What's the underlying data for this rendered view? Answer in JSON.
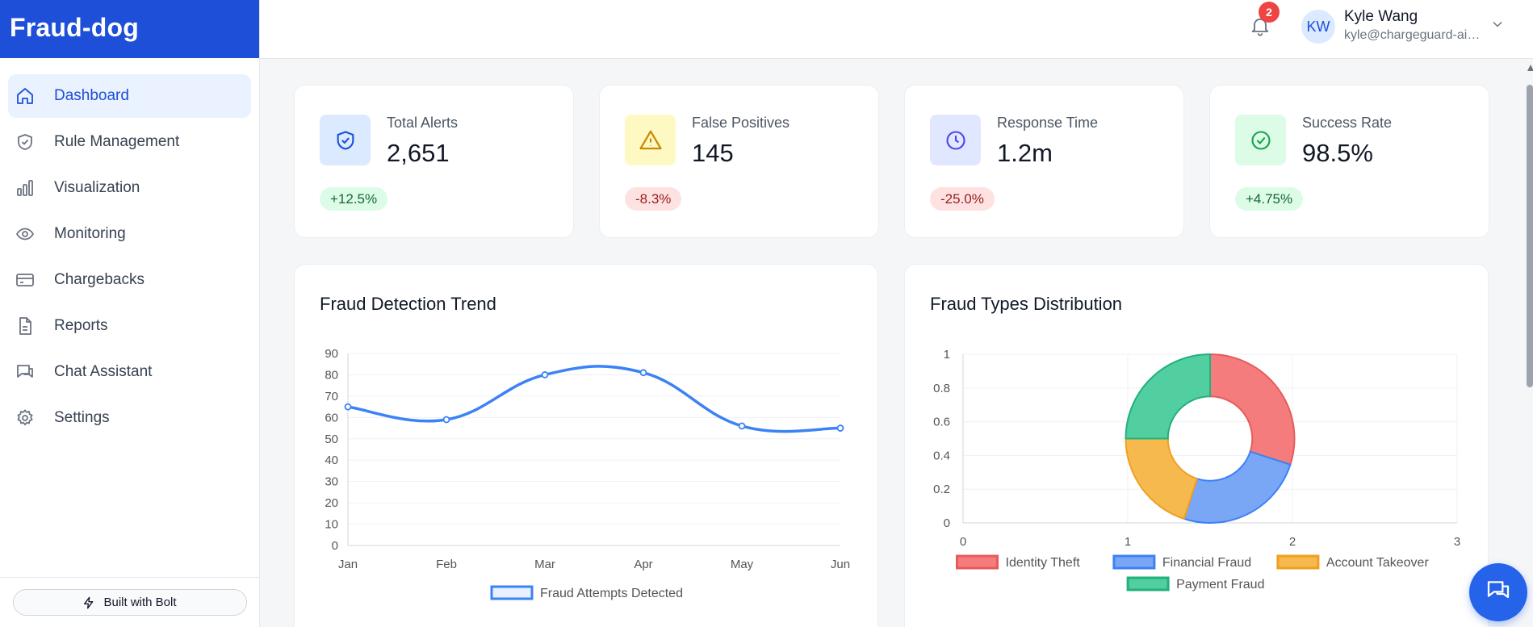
{
  "brand": {
    "name": "Fraud-dog"
  },
  "sidebar": {
    "items": [
      {
        "label": "Dashboard",
        "icon": "home-icon"
      },
      {
        "label": "Rule Management",
        "icon": "shield-check-icon"
      },
      {
        "label": "Visualization",
        "icon": "bar-chart-icon"
      },
      {
        "label": "Monitoring",
        "icon": "eye-icon"
      },
      {
        "label": "Chargebacks",
        "icon": "credit-card-icon"
      },
      {
        "label": "Reports",
        "icon": "file-icon"
      },
      {
        "label": "Chat Assistant",
        "icon": "chat-icon"
      },
      {
        "label": "Settings",
        "icon": "gear-icon"
      }
    ],
    "footer_button": "Built with Bolt"
  },
  "header": {
    "notification_count": "2",
    "user": {
      "initials": "KW",
      "name": "Kyle Wang",
      "email": "kyle@chargeguard-ai...."
    }
  },
  "stats": [
    {
      "label": "Total Alerts",
      "value": "2,651",
      "change": "+12.5%",
      "trend": "up",
      "icon": "shield-icon",
      "icon_bg": "#dbeafe",
      "icon_color": "#1d4fd8"
    },
    {
      "label": "False Positives",
      "value": "145",
      "change": "-8.3%",
      "trend": "down",
      "icon": "warning-icon",
      "icon_bg": "#fef9c3",
      "icon_color": "#ca8a04"
    },
    {
      "label": "Response Time",
      "value": "1.2m",
      "change": "-25.0%",
      "trend": "down",
      "icon": "clock-icon",
      "icon_bg": "#e0e7ff",
      "icon_color": "#4f46e5"
    },
    {
      "label": "Success Rate",
      "value": "98.5%",
      "change": "+4.75%",
      "trend": "up",
      "icon": "check-circle-icon",
      "icon_bg": "#dcfce7",
      "icon_color": "#16a34a"
    }
  ],
  "chart_data": [
    {
      "type": "line",
      "title": "Fraud Detection Trend",
      "categories": [
        "Jan",
        "Feb",
        "Mar",
        "Apr",
        "May",
        "Jun"
      ],
      "series": [
        {
          "name": "Fraud Attempts Detected",
          "values": [
            65,
            59,
            80,
            81,
            56,
            55
          ],
          "color": "#3b82f6"
        }
      ],
      "ylim": [
        0,
        90
      ],
      "yticks": [
        0,
        10,
        20,
        30,
        40,
        50,
        60,
        70,
        80,
        90
      ],
      "legend": "bottom"
    },
    {
      "type": "pie",
      "title": "Fraud Types Distribution",
      "labels": [
        "Identity Theft",
        "Financial Fraud",
        "Account Takeover",
        "Payment Fraud"
      ],
      "values": [
        30,
        25,
        20,
        25
      ],
      "colors": [
        "#f47c7c",
        "#7aa7f5",
        "#f6b94e",
        "#52cfa0"
      ],
      "borders": [
        "#e85a5a",
        "#3b82f6",
        "#f0a020",
        "#22b07d"
      ],
      "xticks": [
        "0",
        "1",
        "2",
        "3"
      ],
      "yticks": [
        "0",
        "0.2",
        "0.4",
        "0.6",
        "0.8",
        "1"
      ],
      "legend": "bottom"
    }
  ]
}
